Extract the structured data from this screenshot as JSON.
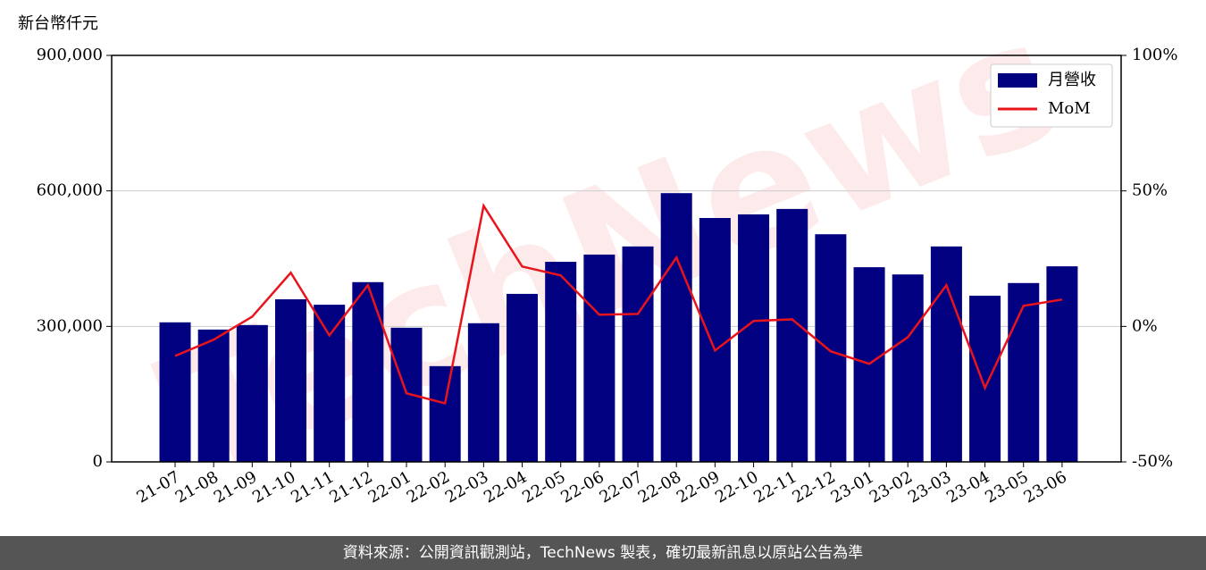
{
  "chart_data": {
    "type": "bar",
    "y_axis_label": "新台幣仟元",
    "watermark": "TechNews",
    "categories": [
      "21-07",
      "21-08",
      "21-09",
      "21-10",
      "21-11",
      "21-12",
      "22-01",
      "22-02",
      "22-03",
      "22-04",
      "22-05",
      "22-06",
      "22-07",
      "22-08",
      "22-09",
      "22-10",
      "22-11",
      "22-12",
      "23-01",
      "23-02",
      "23-03",
      "23-04",
      "23-05",
      "23-06"
    ],
    "series": [
      {
        "name": "月營收",
        "type": "bar",
        "color": "#000080",
        "values": [
          309000,
          293000,
          303000,
          360000,
          348000,
          398000,
          297000,
          212000,
          307000,
          372000,
          443000,
          459000,
          477000,
          595000,
          540000,
          548000,
          560000,
          504000,
          431000,
          415000,
          477000,
          368000,
          396000,
          433000
        ]
      },
      {
        "name": "MoM",
        "type": "line",
        "color": "#e8141b",
        "axis": "y2",
        "values": [
          -10.9,
          -4.9,
          3.6,
          19.8,
          -3.3,
          15.2,
          -24.7,
          -28.4,
          44.5,
          22.1,
          18.8,
          4.3,
          4.6,
          25.4,
          -8.9,
          2.0,
          2.6,
          -9.2,
          -13.8,
          -4.0,
          15.2,
          -22.7,
          7.6,
          9.9
        ]
      }
    ],
    "ylim": [
      0,
      900000
    ],
    "yticks": [
      0,
      {
        "value": 300000,
        "label": "300,000"
      },
      {
        "value": 600000,
        "label": "600,000"
      },
      {
        "value": 900000,
        "label": "900,000"
      }
    ],
    "y2lim": [
      -50,
      100
    ],
    "y2ticks": [
      {
        "value": -50,
        "label": "-50%"
      },
      {
        "value": 0,
        "label": "0%"
      },
      {
        "value": 50,
        "label": "50%"
      },
      {
        "value": 100,
        "label": "100%"
      }
    ],
    "grid": true,
    "legend": "upper right"
  },
  "footer": "資料來源：公開資訊觀測站，TechNews 製表，確切最新訊息以原站公告為準"
}
